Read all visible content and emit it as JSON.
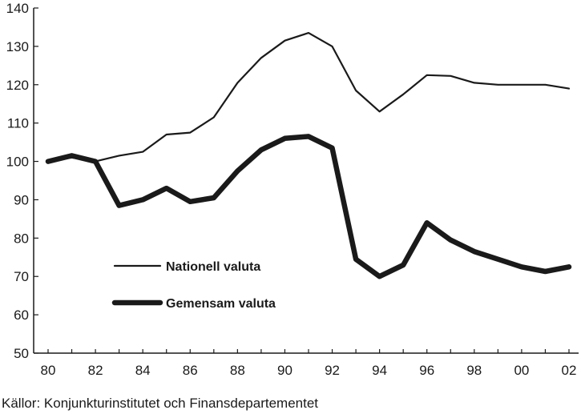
{
  "chart_data": {
    "type": "line",
    "title": "",
    "xlabel": "",
    "ylabel": "",
    "x": [
      1980,
      1981,
      1982,
      1983,
      1984,
      1985,
      1986,
      1987,
      1988,
      1989,
      1990,
      1991,
      1992,
      1993,
      1994,
      1995,
      1996,
      1997,
      1998,
      1999,
      2000,
      2001,
      2002
    ],
    "x_tick_values": [
      1980,
      1982,
      1984,
      1986,
      1988,
      1990,
      1992,
      1994,
      1996,
      1998,
      2000,
      2002
    ],
    "x_tick_labels": [
      "80",
      "82",
      "84",
      "86",
      "88",
      "90",
      "92",
      "94",
      "96",
      "98",
      "00",
      "02"
    ],
    "xlim": [
      1980,
      2002
    ],
    "ylim": [
      50,
      140
    ],
    "y_ticks": [
      50,
      60,
      70,
      80,
      90,
      100,
      110,
      120,
      130,
      140
    ],
    "grid": false,
    "legend_position": "lower-left",
    "series": [
      {
        "name": "Nationell valuta",
        "style": "thin",
        "color": "#1a1a1a",
        "values": [
          100,
          101,
          100,
          101.5,
          102.5,
          107,
          107.5,
          111.5,
          120.5,
          127,
          131.5,
          133.5,
          130,
          118.5,
          113,
          117.5,
          122.5,
          122.3,
          120.5,
          120,
          120,
          120,
          119
        ]
      },
      {
        "name": "Gemensam valuta",
        "style": "thick",
        "color": "#1a1a1a",
        "values": [
          100,
          101.5,
          100,
          88.5,
          90,
          93,
          89.5,
          90.5,
          97.5,
          103,
          106,
          106.5,
          103.5,
          74.5,
          70,
          73,
          84,
          79.5,
          76.5,
          74.5,
          72.5,
          71.3,
          72.5
        ]
      }
    ]
  },
  "source": "Källor: Konjunkturinstitutet och Finansdepartementet"
}
